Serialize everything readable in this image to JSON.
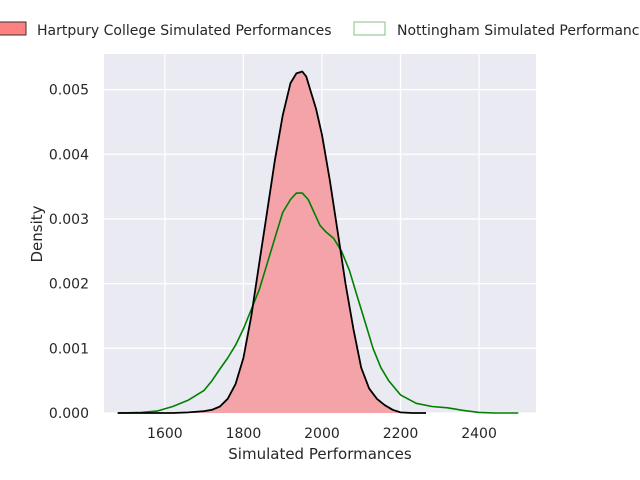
{
  "chart_data": {
    "type": "area",
    "title": "",
    "xlabel": "Simulated Performances",
    "ylabel": "Density",
    "xlim": [
      1445,
      2545
    ],
    "ylim": [
      0,
      0.00555
    ],
    "xticks": [
      1600,
      1800,
      2000,
      2200,
      2400
    ],
    "xtick_labels": [
      "1600",
      "1800",
      "2000",
      "2200",
      "2400"
    ],
    "yticks": [
      0.0,
      0.001,
      0.002,
      0.003,
      0.004,
      0.005
    ],
    "ytick_labels": [
      "0.000",
      "0.001",
      "0.002",
      "0.003",
      "0.004",
      "0.005"
    ],
    "grid": true,
    "legend_placement": "top",
    "series": [
      {
        "name": "Hartpury College Simulated Performances",
        "fill_color": "#f4a3a8",
        "edge_color": "#000000",
        "legend_color": "#ff8080",
        "x": [
          1480,
          1620,
          1660,
          1700,
          1720,
          1740,
          1760,
          1780,
          1800,
          1820,
          1840,
          1860,
          1880,
          1900,
          1920,
          1935,
          1950,
          1960,
          1970,
          1985,
          2000,
          2020,
          2040,
          2060,
          2080,
          2100,
          2120,
          2140,
          2160,
          2180,
          2200,
          2230,
          2265
        ],
        "y": [
          0.0,
          0.0,
          1e-05,
          3e-05,
          5e-05,
          0.0001,
          0.00022,
          0.00045,
          0.00085,
          0.0015,
          0.0023,
          0.0031,
          0.0039,
          0.0046,
          0.0051,
          0.00525,
          0.00528,
          0.0052,
          0.005,
          0.0047,
          0.0043,
          0.0036,
          0.0028,
          0.002,
          0.0013,
          0.0007,
          0.00038,
          0.00022,
          0.00012,
          5e-05,
          1e-05,
          0.0,
          0.0
        ]
      },
      {
        "name": "Nottingham Simulated Performances",
        "line_color": "#008000",
        "legend_color": "#80c080",
        "x": [
          1480,
          1540,
          1580,
          1620,
          1660,
          1700,
          1720,
          1740,
          1760,
          1780,
          1800,
          1820,
          1840,
          1860,
          1880,
          1900,
          1920,
          1935,
          1950,
          1965,
          1980,
          1995,
          2010,
          2030,
          2050,
          2070,
          2090,
          2110,
          2130,
          2150,
          2170,
          2200,
          2240,
          2280,
          2320,
          2360,
          2400,
          2440,
          2500
        ],
        "y": [
          0.0,
          1e-05,
          3e-05,
          0.0001,
          0.0002,
          0.00035,
          0.0005,
          0.00068,
          0.00085,
          0.00105,
          0.0013,
          0.0016,
          0.0019,
          0.0023,
          0.0027,
          0.0031,
          0.0033,
          0.0034,
          0.0034,
          0.0033,
          0.0031,
          0.0029,
          0.0028,
          0.0027,
          0.0025,
          0.0022,
          0.0018,
          0.0014,
          0.001,
          0.0007,
          0.0005,
          0.00028,
          0.00015,
          0.0001,
          8e-05,
          4e-05,
          1e-05,
          0.0,
          0.0
        ]
      }
    ]
  },
  "colors": {
    "plot_background": "#eaeaf2",
    "grid": "#ffffff",
    "text": "#262626"
  }
}
